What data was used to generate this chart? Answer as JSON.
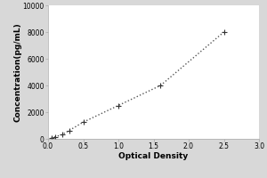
{
  "x_data": [
    0.047,
    0.1,
    0.2,
    0.3,
    0.5,
    1.0,
    1.6,
    2.5
  ],
  "y_data": [
    78,
    156,
    312,
    625,
    1250,
    2500,
    4000,
    8000
  ],
  "xlabel": "Optical Density",
  "ylabel": "Concentration(pg/mL)",
  "xlim": [
    0,
    3
  ],
  "ylim": [
    0,
    10000
  ],
  "xticks": [
    0,
    0.5,
    1,
    1.5,
    2,
    2.5,
    3
  ],
  "yticks": [
    0,
    2000,
    4000,
    6000,
    8000,
    10000
  ],
  "line_color": "#555555",
  "marker": "+",
  "marker_color": "#333333",
  "marker_size": 4,
  "line_style": ":",
  "line_width": 1.0,
  "bg_color": "#d8d8d8",
  "plot_bg_color": "#ffffff",
  "tick_fontsize": 5.5,
  "label_fontsize": 6.5,
  "spine_color": "#aaaaaa"
}
